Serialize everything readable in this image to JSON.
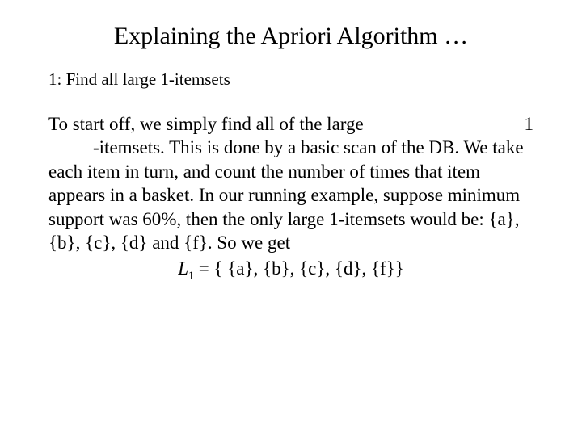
{
  "title": "Explaining the Apriori Algorithm …",
  "step": "1:  Find all large 1-itemsets",
  "body": {
    "first_left": "To start off, we simply find all of the large",
    "first_right": "1",
    "rest": "-itemsets. This is done by a basic scan of the DB. We take each item in turn, and count the number of times that item appears in a basket. In our running example, suppose minimum support was 60%, then the only large 1-itemsets would be: {a}, {b}, {c}, {d} and {f}. So we get"
  },
  "formula": {
    "lhs_var": "L",
    "lhs_sub": "1",
    "rhs": " = { {a}, {b}, {c}, {d}, {f}}"
  }
}
